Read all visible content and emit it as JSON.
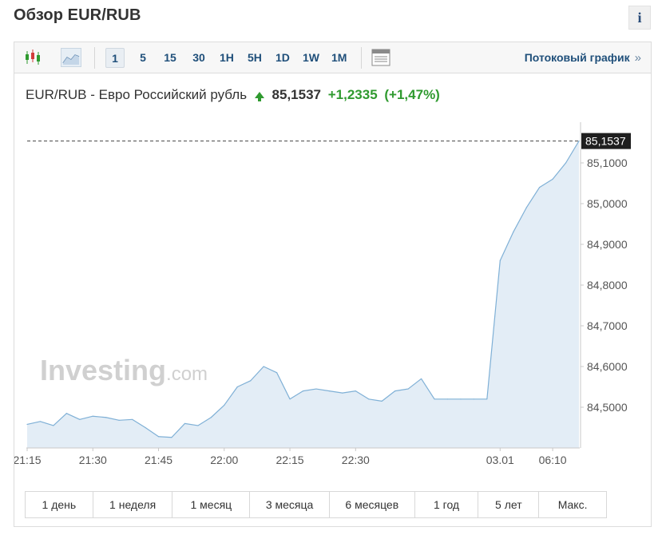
{
  "page": {
    "title": "Обзор EUR/RUB",
    "info_icon": "i"
  },
  "toolbar": {
    "chart_type_icons": [
      "candlestick-icon",
      "area-chart-icon"
    ],
    "timeframes": [
      "1",
      "5",
      "15",
      "30",
      "1H",
      "5H",
      "1D",
      "1W",
      "1M"
    ],
    "active_timeframe": "1",
    "table_icon": "table-icon",
    "stream_link": "Потоковый график",
    "stream_chevron": "»"
  },
  "quote": {
    "symbol": "EUR/RUB",
    "separator": "-",
    "name": "Евро Российский рубль",
    "price": "85,1537",
    "change": "+1,2335",
    "change_pct": "(+1,47%)",
    "direction_icon": "arrow-up-icon"
  },
  "watermark": {
    "brand": "Investing",
    "suffix": ".com"
  },
  "colors": {
    "line": "#7fb0d6",
    "fill": "#e3edf6",
    "up": "#2f9a2f",
    "link": "#1f4f7a",
    "last_price_bg": "#1f1f1f"
  },
  "chart_data": {
    "type": "area",
    "x": [
      "21:15",
      "21:18",
      "21:21",
      "21:24",
      "21:27",
      "21:30",
      "21:33",
      "21:36",
      "21:39",
      "21:42",
      "21:45",
      "21:48",
      "21:51",
      "21:54",
      "21:57",
      "22:00",
      "22:03",
      "22:06",
      "22:09",
      "22:12",
      "22:15",
      "22:18",
      "22:21",
      "22:24",
      "22:27",
      "22:30",
      "22:33",
      "22:36",
      "22:39",
      "22:42",
      "22:45",
      "22:48",
      "22:51",
      "22:54",
      "22:57",
      "23:00",
      "05:35",
      "05:45",
      "05:55",
      "06:05",
      "06:10",
      "06:15",
      "06:20"
    ],
    "y": [
      84.458,
      84.465,
      84.455,
      84.485,
      84.47,
      84.478,
      84.475,
      84.468,
      84.47,
      84.45,
      84.428,
      84.426,
      84.46,
      84.455,
      84.475,
      84.505,
      84.55,
      84.565,
      84.6,
      84.585,
      84.52,
      84.54,
      84.545,
      84.54,
      84.535,
      84.54,
      84.52,
      84.515,
      84.54,
      84.545,
      84.57,
      84.52,
      84.52,
      84.52,
      84.52,
      84.52,
      84.86,
      84.93,
      84.99,
      85.04,
      85.06,
      85.1,
      85.1537
    ],
    "x_ticks": [
      "21:15",
      "21:30",
      "21:45",
      "22:00",
      "22:15",
      "22:30",
      "03.01",
      "06:10"
    ],
    "y_ticks": [
      "85,1000",
      "85,0000",
      "84,9000",
      "84,8000",
      "84,7000",
      "84,6000",
      "84,5000"
    ],
    "y_tick_values": [
      85.1,
      85.0,
      84.9,
      84.8,
      84.7,
      84.6,
      84.5
    ],
    "ylim": [
      84.4,
      85.2
    ],
    "last_value": 85.1537,
    "last_label": "85,1537",
    "title": "",
    "xlabel": "",
    "ylabel": "",
    "grid": false
  },
  "ranges": [
    "1 день",
    "1 неделя",
    "1 месяц",
    "3 месяца",
    "6 месяцев",
    "1 год",
    "5 лет",
    "Макс."
  ]
}
